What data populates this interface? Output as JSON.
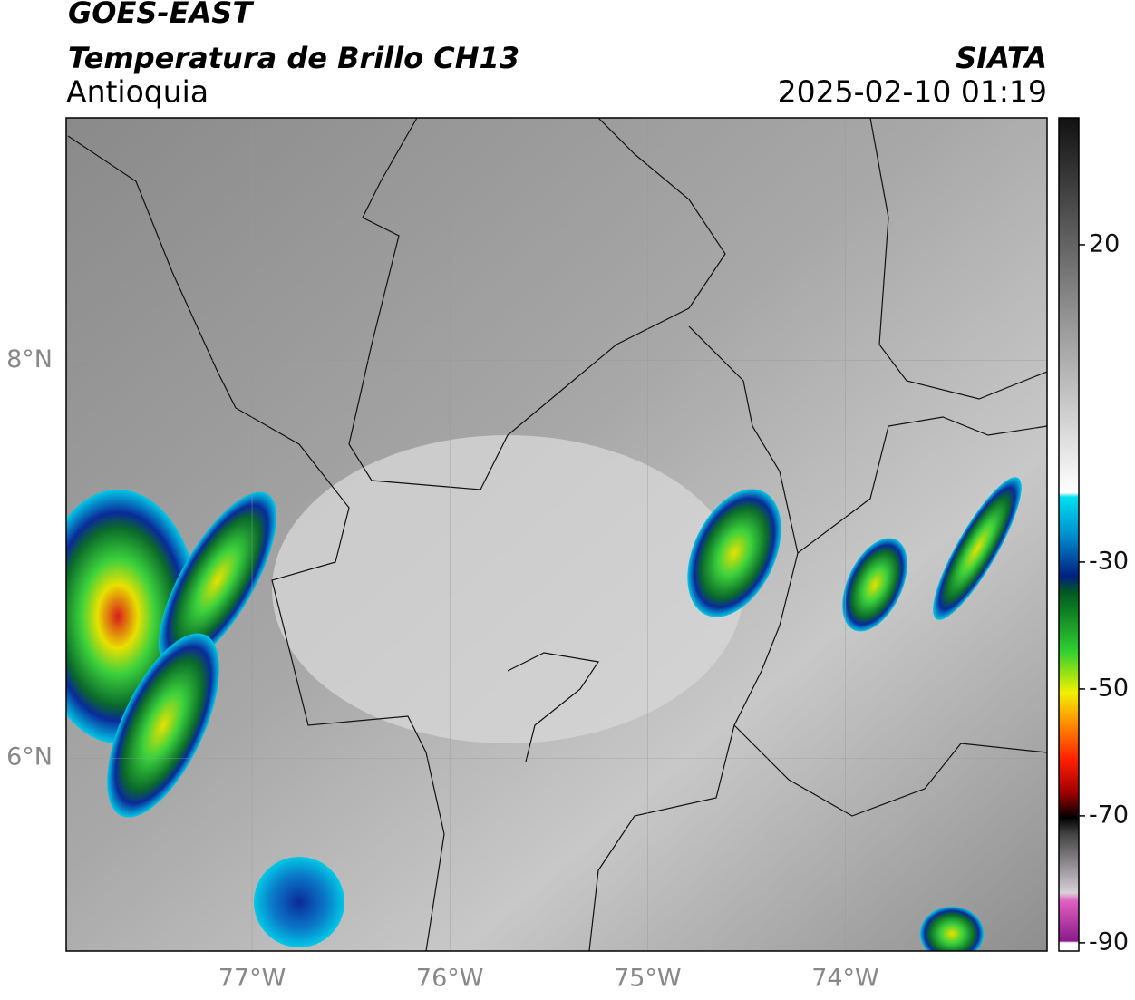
{
  "header": {
    "title": "GOES-EAST",
    "subtitle": "Temperatura de Brillo CH13",
    "region": "Antioquia",
    "source": "SIATA",
    "datetime": "2025-02-10 01:19"
  },
  "map": {
    "lonlim": [
      -77.94,
      -72.98
    ],
    "latlim": [
      5.03,
      9.22
    ],
    "lon_ticks": [
      {
        "value": -77,
        "label": "77°W"
      },
      {
        "value": -76,
        "label": "76°W"
      },
      {
        "value": -75,
        "label": "75°W"
      },
      {
        "value": -74,
        "label": "74°W"
      }
    ],
    "lat_ticks": [
      {
        "value": 8,
        "label": "8°N"
      },
      {
        "value": 6,
        "label": "6°N"
      }
    ]
  },
  "colorbar": {
    "lim": [
      -91.3,
      40
    ],
    "ticks": [
      20,
      -30,
      -50,
      -70,
      -90
    ]
  }
}
